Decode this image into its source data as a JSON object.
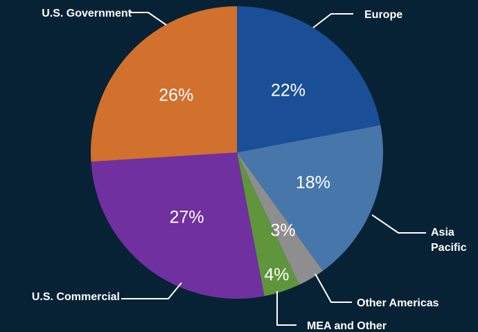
{
  "chart_data": {
    "type": "pie",
    "title": "",
    "legend": "none",
    "slices": [
      {
        "label": "Europe",
        "value": 22,
        "value_label": "22%",
        "color": "#1a4f97"
      },
      {
        "label": "Asia Pacific",
        "value": 18,
        "value_label": "18%",
        "color": "#4776ab"
      },
      {
        "label": "Other Americas",
        "value": 3,
        "value_label": "3%",
        "color": "#8e8e8e"
      },
      {
        "label": "MEA and Other",
        "value": 4,
        "value_label": "4%",
        "color": "#5f963c"
      },
      {
        "label": "U.S. Commercial",
        "value": 27,
        "value_label": "27%",
        "color": "#7030a0"
      },
      {
        "label": "U.S. Government",
        "value": 26,
        "value_label": "26%",
        "color": "#d2702e"
      }
    ]
  }
}
